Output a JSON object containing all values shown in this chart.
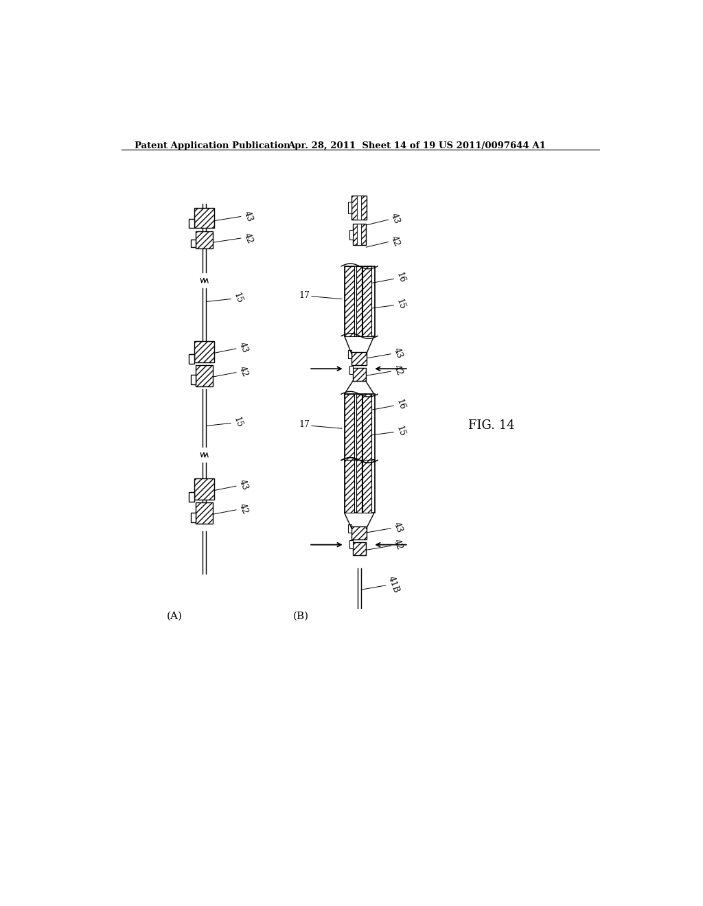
{
  "bg_color": "#ffffff",
  "line_color": "#000000",
  "header_left": "Patent Application Publication",
  "header_mid": "Apr. 28, 2011  Sheet 14 of 19",
  "header_right": "US 2011/0097644 A1",
  "fig_label": "FIG. 14",
  "panel_A_label": "(A)",
  "panel_B_label": "(B)"
}
